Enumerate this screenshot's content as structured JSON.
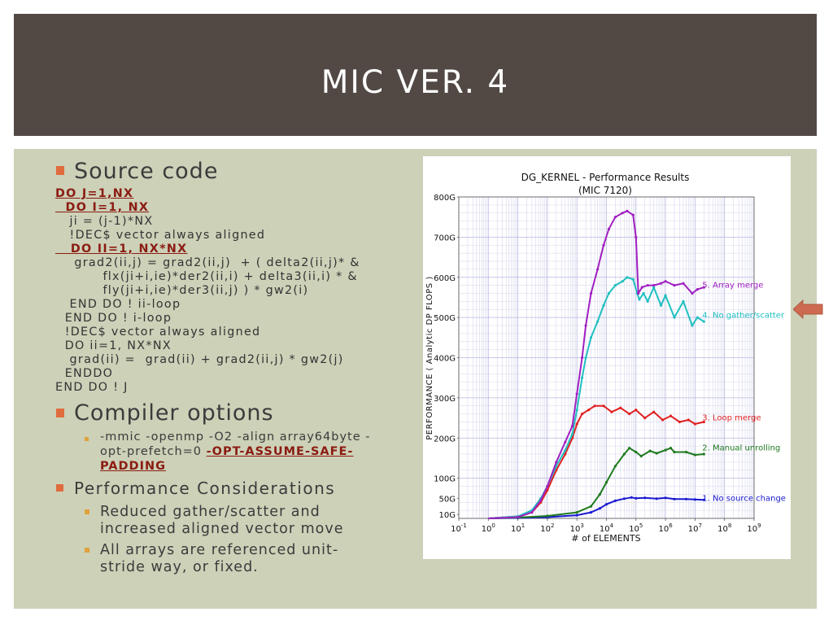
{
  "slide": {
    "title": "MIC VER. 4",
    "bullets": {
      "source_code": "Source code",
      "compiler_options": "Compiler options",
      "perf_considerations": "Performance Considerations"
    },
    "code_lines": [
      {
        "text": "DO J=1,NX",
        "style": "red"
      },
      {
        "text": "  DO I=1, NX",
        "style": "red"
      },
      {
        "text": "   ji = (j-1)*NX",
        "style": "plain"
      },
      {
        "text": "   !DEC$ vector always aligned",
        "style": "plain"
      },
      {
        "text": "   DO II=1, NX*NX",
        "style": "red"
      },
      {
        "text": "    grad2(ii,j) = grad2(ii,j)  + ( delta2(ii,j)* &",
        "style": "plain"
      },
      {
        "text": "          flx(ji+i,ie)*der2(ii,i) + delta3(ii,i) * &",
        "style": "plain"
      },
      {
        "text": "          fly(ji+i,ie)*der3(ii,j) ) * gw2(i)",
        "style": "plain"
      },
      {
        "text": "   END DO ! ii-loop",
        "style": "plain"
      },
      {
        "text": "  END DO ! i-loop",
        "style": "plain"
      },
      {
        "text": "  !DEC$ vector always aligned",
        "style": "plain"
      },
      {
        "text": "  DO ii=1, NX*NX",
        "style": "plain"
      },
      {
        "text": "   grad(ii) =  grad(ii) + grad2(ii,j) * gw2(j)",
        "style": "plain"
      },
      {
        "text": "  ENDDO",
        "style": "plain"
      },
      {
        "text": "END DO ! J",
        "style": "plain"
      }
    ],
    "compiler_option_text": "-mmic -openmp -O2 -align array64byte -opt-prefetch=0 ",
    "compiler_option_flag": "-OPT-ASSUME-SAFE-PADDING",
    "compiler_option_line1": "-mmic -openmp -O2 -align array64byte -",
    "compiler_option_line2": "opt-prefetch=0 ",
    "compiler_flag_part1": "-OPT-ASSUME-SAFE-",
    "compiler_flag_part2": "PADDING",
    "perf_items": [
      {
        "line1": "Reduced gather/scatter and",
        "line2": "increased aligned vector move"
      },
      {
        "line1": "All arrays are referenced unit-",
        "line2": "stride way, or fixed."
      }
    ],
    "colors": {
      "title_bg": "#524945",
      "content_bg": "#cdd1b8",
      "bullet": "#e06c3d",
      "sub_bullet": "#e0a23d",
      "code_red": "#8b1c12",
      "arrow": "#cd6a4f"
    }
  },
  "chart_data": {
    "type": "line",
    "title": "DG_KERNEL - Performance Results",
    "subtitle": "(MIC 7120)",
    "xlabel": "# of ELEMENTS",
    "ylabel": "PERFORMANCE ( Analytic DP FLOPS )",
    "xscale": "log",
    "xlim": [
      0.1,
      1000000000
    ],
    "ylim": [
      0,
      800
    ],
    "x_tick_bases": [
      "10",
      "10",
      "10",
      "10",
      "10",
      "10",
      "10",
      "10",
      "10",
      "10",
      "10"
    ],
    "x_tick_exps": [
      "-1",
      "0",
      "1",
      "2",
      "3",
      "4",
      "5",
      "6",
      "7",
      "8",
      "9"
    ],
    "x_tick_values": [
      0.1,
      1,
      10,
      100,
      1000,
      10000,
      100000,
      1000000,
      10000000,
      100000000,
      1000000000
    ],
    "y_ticks": [
      {
        "value": 10,
        "label": "10G"
      },
      {
        "value": 50,
        "label": "50G"
      },
      {
        "value": 100,
        "label": "100G"
      },
      {
        "value": 200,
        "label": "200G"
      },
      {
        "value": 300,
        "label": "300G"
      },
      {
        "value": 400,
        "label": "400G"
      },
      {
        "value": 500,
        "label": "500G"
      },
      {
        "value": 600,
        "label": "600G"
      },
      {
        "value": 700,
        "label": "700G"
      },
      {
        "value": 800,
        "label": "800G"
      }
    ],
    "grid": true,
    "series": [
      {
        "name": "1. No source change",
        "color": "#1a1ad0",
        "label_at": [
          12000000,
          50
        ],
        "points": [
          [
            1,
            0
          ],
          [
            10,
            1
          ],
          [
            100,
            3
          ],
          [
            1000,
            8
          ],
          [
            3000,
            15
          ],
          [
            6000,
            25
          ],
          [
            10000,
            35
          ],
          [
            20000,
            44
          ],
          [
            40000,
            49
          ],
          [
            70000,
            52
          ],
          [
            100000,
            50
          ],
          [
            200000,
            51
          ],
          [
            500000,
            49
          ],
          [
            1000000,
            51
          ],
          [
            2000000,
            48
          ],
          [
            5000000,
            48
          ],
          [
            10000000,
            47
          ],
          [
            20000000,
            46
          ]
        ]
      },
      {
        "name": "2. Manual unrolling",
        "color": "#1e7a1e",
        "label_at": [
          12000000,
          175
        ],
        "points": [
          [
            1,
            0
          ],
          [
            10,
            2
          ],
          [
            100,
            6
          ],
          [
            1000,
            15
          ],
          [
            3000,
            30
          ],
          [
            6000,
            60
          ],
          [
            10000,
            90
          ],
          [
            20000,
            130
          ],
          [
            40000,
            160
          ],
          [
            60000,
            175
          ],
          [
            100000,
            165
          ],
          [
            150000,
            155
          ],
          [
            300000,
            168
          ],
          [
            500000,
            162
          ],
          [
            1000000,
            170
          ],
          [
            1500000,
            175
          ],
          [
            2000000,
            165
          ],
          [
            5000000,
            165
          ],
          [
            10000000,
            158
          ],
          [
            20000000,
            160
          ]
        ]
      },
      {
        "name": "3. Loop merge",
        "color": "#e02020",
        "label_at": [
          12000000,
          250
        ],
        "points": [
          [
            1,
            0
          ],
          [
            10,
            5
          ],
          [
            30,
            15
          ],
          [
            60,
            40
          ],
          [
            100,
            70
          ],
          [
            200,
            120
          ],
          [
            400,
            160
          ],
          [
            700,
            200
          ],
          [
            1000,
            235
          ],
          [
            1500,
            260
          ],
          [
            2500,
            270
          ],
          [
            4000,
            280
          ],
          [
            8000,
            280
          ],
          [
            15000,
            265
          ],
          [
            30000,
            275
          ],
          [
            60000,
            260
          ],
          [
            100000,
            270
          ],
          [
            200000,
            250
          ],
          [
            400000,
            265
          ],
          [
            800000,
            245
          ],
          [
            1500000,
            255
          ],
          [
            3000000,
            240
          ],
          [
            6000000,
            245
          ],
          [
            10000000,
            235
          ],
          [
            20000000,
            240
          ]
        ]
      },
      {
        "name": "4. No gather/scatter",
        "color": "#20c0c0",
        "label_at": [
          12000000,
          505
        ],
        "points": [
          [
            1,
            0
          ],
          [
            10,
            5
          ],
          [
            30,
            20
          ],
          [
            60,
            50
          ],
          [
            100,
            80
          ],
          [
            200,
            130
          ],
          [
            400,
            170
          ],
          [
            700,
            210
          ],
          [
            1000,
            270
          ],
          [
            1500,
            350
          ],
          [
            2000,
            400
          ],
          [
            3000,
            450
          ],
          [
            5000,
            490
          ],
          [
            8000,
            530
          ],
          [
            12000,
            560
          ],
          [
            20000,
            580
          ],
          [
            35000,
            590
          ],
          [
            50000,
            600
          ],
          [
            80000,
            595
          ],
          [
            110000,
            560
          ],
          [
            130000,
            545
          ],
          [
            180000,
            560
          ],
          [
            250000,
            540
          ],
          [
            400000,
            575
          ],
          [
            700000,
            530
          ],
          [
            1000000,
            555
          ],
          [
            2000000,
            500
          ],
          [
            4000000,
            540
          ],
          [
            8000000,
            480
          ],
          [
            12000000,
            500
          ],
          [
            20000000,
            490
          ]
        ]
      },
      {
        "name": "5. Array merge",
        "color": "#a020c0",
        "label_at": [
          12000000,
          580
        ],
        "points": [
          [
            1,
            0
          ],
          [
            10,
            3
          ],
          [
            30,
            15
          ],
          [
            60,
            45
          ],
          [
            100,
            80
          ],
          [
            200,
            140
          ],
          [
            400,
            190
          ],
          [
            700,
            230
          ],
          [
            1000,
            310
          ],
          [
            1500,
            400
          ],
          [
            2000,
            480
          ],
          [
            3000,
            560
          ],
          [
            5000,
            620
          ],
          [
            8000,
            680
          ],
          [
            12000,
            720
          ],
          [
            20000,
            750
          ],
          [
            35000,
            760
          ],
          [
            50000,
            765
          ],
          [
            80000,
            755
          ],
          [
            100000,
            700
          ],
          [
            120000,
            560
          ],
          [
            160000,
            575
          ],
          [
            250000,
            580
          ],
          [
            400000,
            580
          ],
          [
            700000,
            585
          ],
          [
            1000000,
            590
          ],
          [
            2000000,
            580
          ],
          [
            4000000,
            585
          ],
          [
            8000000,
            560
          ],
          [
            12000000,
            570
          ],
          [
            20000000,
            575
          ]
        ]
      }
    ]
  }
}
